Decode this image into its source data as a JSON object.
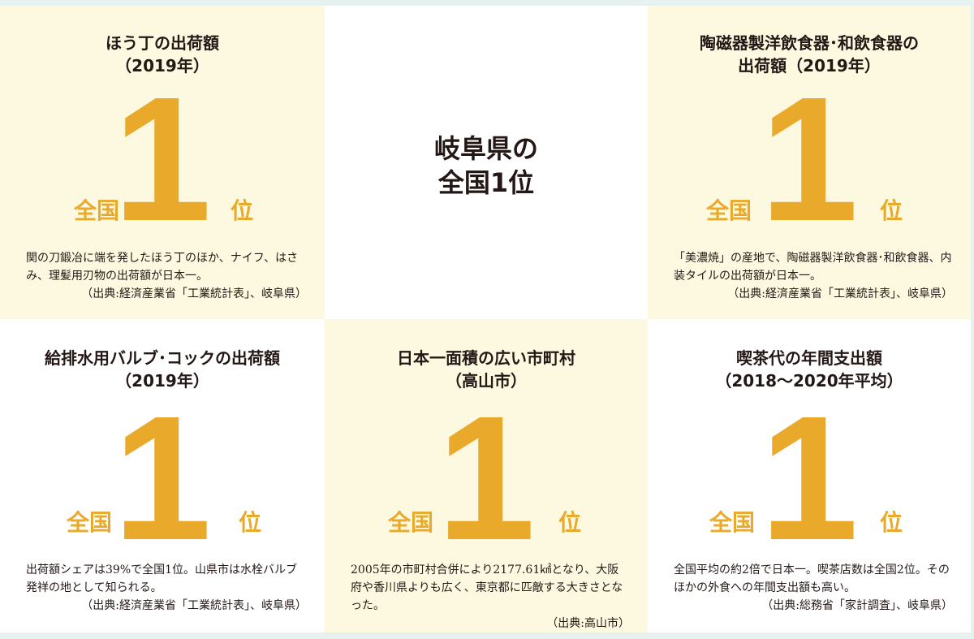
{
  "center": {
    "line1": "岐阜県の",
    "line2": "全国1位"
  },
  "rank": {
    "number": "1",
    "prefix": "全国",
    "suffix": "位"
  },
  "cards": [
    {
      "title_lines": [
        "ほう丁の出荷額",
        "（2019年）"
      ],
      "description": "関の刀鍛冶に端を発したほう丁のほか、ナイフ、はさみ、理髪用刃物の出荷額が日本一。",
      "source": "（出典:経済産業省「工業統計表」、岐阜県）"
    },
    {
      "title_lines": [
        "陶磁器製洋飲食器･和飲食器の",
        "出荷額（2019年）"
      ],
      "description": "「美濃焼」の産地で、陶磁器製洋飲食器･和飲食器、内装タイルの出荷額が日本一。",
      "source": "（出典:経済産業省「工業統計表」、岐阜県）"
    },
    {
      "title_lines": [
        "給排水用バルブ･コックの出荷額",
        "（2019年）"
      ],
      "description": "出荷額シェアは39%で全国1位。山県市は水栓バルブ発祥の地として知られる。",
      "source": "（出典:経済産業省「工業統計表」、岐阜県）"
    },
    {
      "title_lines": [
        "日本一面積の広い市町村",
        "（高山市）"
      ],
      "description": "2005年の市町村合併により2177.61㎢となり、大阪府や香川県よりも広く、東京都に匹敵する大きさとなった。",
      "source": "（出典:高山市）"
    },
    {
      "title_lines": [
        "喫茶代の年間支出額",
        "（2018～2020年平均）"
      ],
      "description": "全国平均の約2倍で日本一。喫茶店数は全国2位。そのほかの外食への年間支出額も高い。",
      "source": "（出典:総務省「家計調査」、岐阜県）"
    }
  ]
}
